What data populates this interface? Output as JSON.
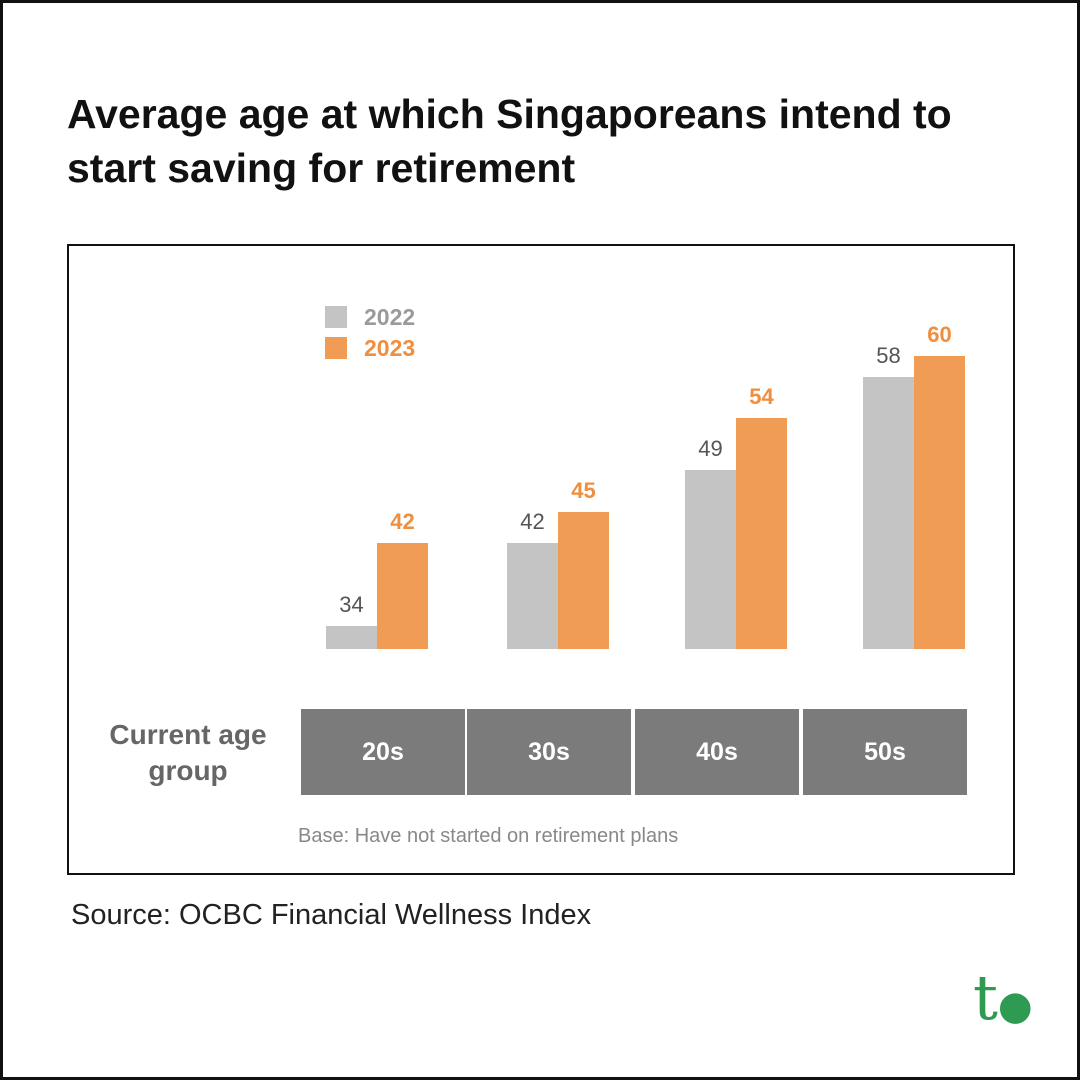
{
  "title": "Average age at which Singaporeans intend to start saving for retirement",
  "source": "Source: OCBC Financial Wellness Index",
  "logo_text": "t.",
  "chart_data": {
    "type": "bar",
    "title": "Average age at which Singaporeans intend to start saving for retirement",
    "xlabel": "Current age group",
    "ylabel": "",
    "categories": [
      "20s",
      "30s",
      "40s",
      "50s"
    ],
    "series": [
      {
        "name": "2022",
        "color": "#c4c4c4",
        "label_color": "#555555",
        "values": [
          34,
          42,
          49,
          58
        ]
      },
      {
        "name": "2023",
        "color": "#f09c55",
        "label_color": "#ef8e3e",
        "values": [
          42,
          45,
          54,
          60
        ]
      }
    ],
    "ylim": [
      31.8,
      60
    ],
    "grid": false,
    "legend_position": "top-left",
    "note": "Base: Have not started on retirement plans"
  }
}
